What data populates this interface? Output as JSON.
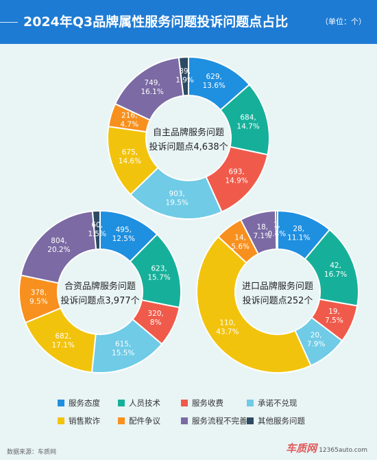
{
  "header": {
    "title": "2024年Q3品牌属性服务问题投诉问题点占比",
    "unit": "（单位：个）"
  },
  "colors": {
    "header_bg": "#1e7bd3",
    "page_bg": "#e9f4f5",
    "categories": [
      "#1f8fe0",
      "#16b09a",
      "#f05a4a",
      "#6fcbe6",
      "#f2c30d",
      "#f7901e",
      "#7b6aa3",
      "#2d4a63"
    ]
  },
  "chart_data": [
    {
      "type": "pie",
      "donut": true,
      "center_label": [
        "自主品牌服务问题",
        "投诉问题点4,638个"
      ],
      "categories": [
        "服务态度",
        "人员技术",
        "服务收费",
        "承诺不兑现",
        "销售欺诈",
        "配件争议",
        "服务流程不完善",
        "其他服务问题"
      ],
      "values": [
        629,
        684,
        693,
        903,
        675,
        216,
        749,
        89
      ],
      "labels": [
        "629,\n13.6%",
        "684,\n14.7%",
        "693,\n14.9%",
        "903,\n19.5%",
        "675,\n14.6%",
        "216,\n4.7%",
        "749,\n16.1%",
        "89,\n1.9%"
      ]
    },
    {
      "type": "pie",
      "donut": true,
      "center_label": [
        "合资品牌服务问题",
        "投诉问题点3,977个"
      ],
      "categories": [
        "服务态度",
        "人员技术",
        "服务收费",
        "承诺不兑现",
        "销售欺诈",
        "配件争议",
        "服务流程不完善",
        "其他服务问题"
      ],
      "values": [
        495,
        623,
        320,
        615,
        682,
        378,
        804,
        60
      ],
      "labels": [
        "495,\n12.5%",
        "623,\n15.7%",
        "320,\n8%",
        "615,\n15.5%",
        "682,\n17.1%",
        "378,\n9.5%",
        "804,\n20.2%",
        "60,\n1.5%"
      ]
    },
    {
      "type": "pie",
      "donut": true,
      "center_label": [
        "进口品牌服务问题",
        "投诉问题点252个"
      ],
      "categories": [
        "服务态度",
        "人员技术",
        "服务收费",
        "承诺不兑现",
        "销售欺诈",
        "配件争议",
        "服务流程不完善",
        "其他服务问题"
      ],
      "values": [
        28,
        42,
        19,
        20,
        110,
        14,
        18,
        1
      ],
      "labels": [
        "28,\n11.1%",
        "42,\n16.7%",
        "19,\n7.5%",
        "20,\n7.9%",
        "110,\n43.7%",
        "14,\n5.6%",
        "18,\n7.1%",
        "1,\n0.4%"
      ]
    }
  ],
  "legend": {
    "items": [
      "服务态度",
      "人员技术",
      "服务收费",
      "承诺不兑现",
      "销售欺诈",
      "配件争议",
      "服务流程不完善",
      "其他服务问题"
    ]
  },
  "footer": {
    "source": "数据来源：车质网",
    "logo_text": "车质网",
    "logo_site": "12365auto.com"
  }
}
